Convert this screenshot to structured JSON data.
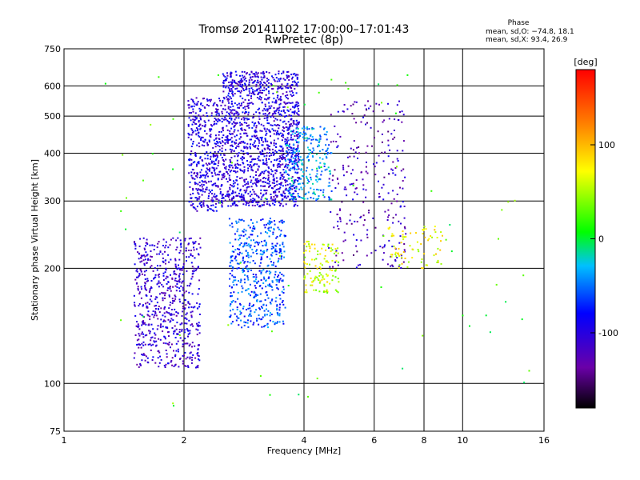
{
  "chart_data": {
    "type": "scatter",
    "title": "Tromsø 20141102 17:00:00–17:01:43",
    "subtitle": "RwPretec (8p)",
    "xlabel": "Frequency [MHz]",
    "ylabel": "Stationary phase Virtual Height [km]",
    "x_scale": "log",
    "y_scale": "log",
    "xlim": [
      1,
      16
    ],
    "ylim": [
      75,
      750
    ],
    "x_ticks": [
      1,
      2,
      4,
      6,
      8,
      10,
      16
    ],
    "y_ticks": [
      75,
      100,
      200,
      300,
      400,
      500,
      600,
      750
    ],
    "grid": true,
    "phase_box": {
      "title": "Phase",
      "line_o": "mean, sd,O: −74.8, 18.1",
      "line_x": "mean, sd,X:  93.4, 26.9"
    },
    "colorbar": {
      "label": "[deg]",
      "range": [
        -180,
        180
      ],
      "ticks": [
        100,
        0,
        -100
      ]
    },
    "clusters": [
      {
        "f": [
          1.5,
          2.2
        ],
        "h": [
          110,
          240
        ],
        "phase": -110,
        "density": 650
      },
      {
        "f": [
          2.05,
          2.5
        ],
        "h": [
          280,
          560
        ],
        "phase": -100,
        "density": 450
      },
      {
        "f": [
          2.5,
          3.9
        ],
        "h": [
          290,
          655
        ],
        "phase": -100,
        "density": 1400
      },
      {
        "f": [
          2.6,
          3.6
        ],
        "h": [
          140,
          270
        ],
        "phase": -60,
        "density": 500
      },
      {
        "f": [
          3.6,
          4.7
        ],
        "h": [
          300,
          470
        ],
        "phase": -40,
        "density": 260
      },
      {
        "f": [
          4.0,
          4.9
        ],
        "h": [
          170,
          235
        ],
        "phase": 60,
        "density": 120
      },
      {
        "f": [
          4.6,
          7.2
        ],
        "h": [
          200,
          550
        ],
        "phase": -120,
        "density": 260
      },
      {
        "f": [
          6.5,
          9.0
        ],
        "h": [
          200,
          260
        ],
        "phase": 70,
        "density": 80
      },
      {
        "f": [
          1.2,
          15.5
        ],
        "h": [
          80,
          650
        ],
        "phase": 20,
        "density": 70
      }
    ]
  }
}
